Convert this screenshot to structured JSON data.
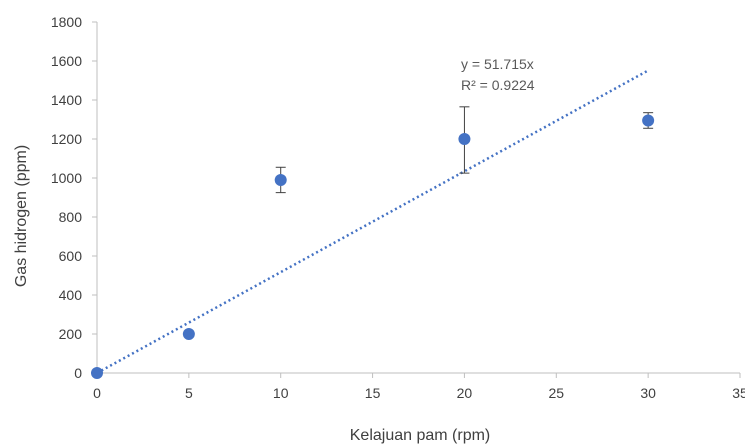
{
  "chart_data": {
    "type": "scatter",
    "title": "",
    "xlabel": "Kelajuan pam (rpm)",
    "ylabel": "Gas hidrogen (ppm)",
    "xlim": [
      0,
      35
    ],
    "ylim": [
      0,
      1800
    ],
    "x_ticks": [
      "0",
      "5",
      "10",
      "15",
      "20",
      "25",
      "30",
      "35"
    ],
    "y_ticks": [
      "0",
      "200",
      "400",
      "600",
      "800",
      "1000",
      "1200",
      "1400",
      "1600",
      "1800"
    ],
    "grid": false,
    "legend": "none",
    "series": [
      {
        "x": [
          0,
          5,
          10,
          20,
          30
        ],
        "y": [
          0,
          200,
          990,
          1200,
          1295
        ],
        "error_low": [
          0,
          0,
          65,
          175,
          40
        ],
        "error_high": [
          0,
          0,
          65,
          165,
          40
        ],
        "color": "#4472C4"
      }
    ],
    "trendline": {
      "type": "linear-through-origin",
      "slope": 51.715,
      "x_range": [
        0,
        30
      ],
      "color": "#4472C4",
      "style": "dotted"
    },
    "annotations": [
      "y = 51.715x",
      "R² = 0.9224"
    ]
  }
}
